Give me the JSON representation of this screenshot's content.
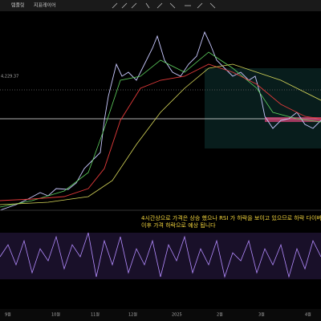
{
  "toolbar": {
    "items": [
      "템플릿",
      "지표레이어"
    ]
  },
  "chart": {
    "price_label": "4,229.37",
    "annotation": [
      "4시간상으로 가격은 상승 했으나 RSI 가 하락을 보이고 있으므로 하락 다이버전스 발생",
      "이후 가격 하락으로 예상 됩니다"
    ],
    "x_labels": [
      "9월",
      "10월",
      "11월",
      "12월",
      "2025",
      "2월",
      "3월",
      "4월"
    ]
  }
}
